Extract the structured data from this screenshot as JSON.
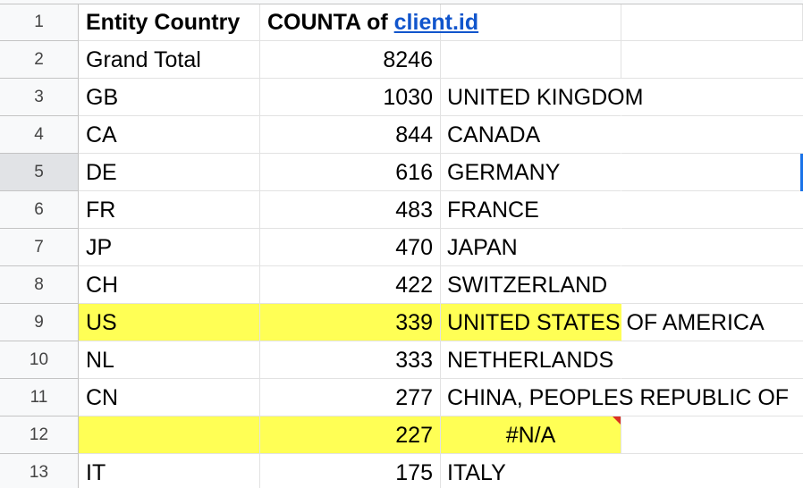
{
  "header": {
    "row_number": 1,
    "col_a": "Entity Country",
    "col_b_prefix": "COUNTA of",
    "col_b_link": "client.id"
  },
  "rows": [
    {
      "row_number": 2,
      "country": "Grand Total",
      "count": 8246,
      "name": null
    },
    {
      "row_number": 3,
      "country": "GB",
      "count": 1030,
      "name": "UNITED KINGDOM"
    },
    {
      "row_number": 4,
      "country": "CA",
      "count": 844,
      "name": "CANADA"
    },
    {
      "row_number": 5,
      "country": "DE",
      "count": 616,
      "name": "GERMANY",
      "selected": true
    },
    {
      "row_number": 6,
      "country": "FR",
      "count": 483,
      "name": "FRANCE"
    },
    {
      "row_number": 7,
      "country": "JP",
      "count": 470,
      "name": "JAPAN"
    },
    {
      "row_number": 8,
      "country": "CH",
      "count": 422,
      "name": "SWITZERLAND"
    },
    {
      "row_number": 9,
      "country": "US",
      "count": 339,
      "name": "UNITED STATES OF AMERICA",
      "highlight": true
    },
    {
      "row_number": 10,
      "country": "NL",
      "count": 333,
      "name": "NETHERLANDS"
    },
    {
      "row_number": 11,
      "country": "CN",
      "count": 277,
      "name": "CHINA, PEOPLES REPUBLIC OF"
    },
    {
      "row_number": 12,
      "country": null,
      "count": 227,
      "name": "#N/A",
      "highlight": true,
      "error": true
    },
    {
      "row_number": 13,
      "country": "IT",
      "count": 175,
      "name": "ITALY"
    }
  ]
}
